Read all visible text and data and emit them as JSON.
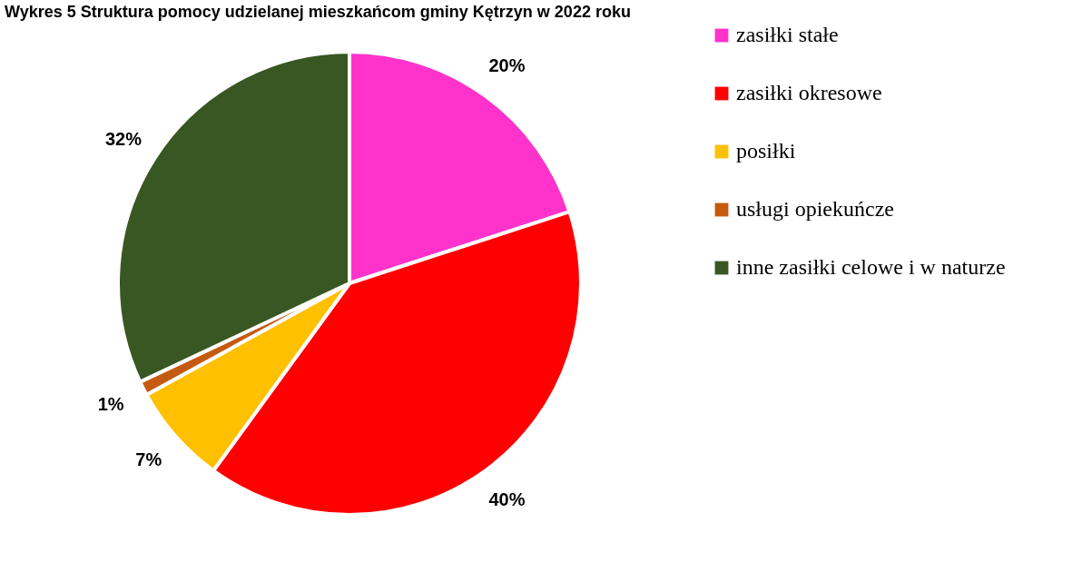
{
  "chart_data": {
    "type": "pie",
    "title": "Wykres 5 Struktura pomocy udzielanej mieszkańcom gminy Kętrzyn w 2022 roku",
    "categories": [
      "zasiłki stałe",
      "zasiłki okresowe",
      "posiłki",
      "usługi opiekuńcze",
      "inne zasiłki celowe i w naturze"
    ],
    "values": [
      20,
      40,
      7,
      1,
      32
    ],
    "colors": [
      "#ff33cc",
      "#ff0000",
      "#ffc000",
      "#c55a11",
      "#385723"
    ],
    "value_labels": [
      "20%",
      "40%",
      "7%",
      "1%",
      "32%"
    ],
    "legend": "right"
  }
}
